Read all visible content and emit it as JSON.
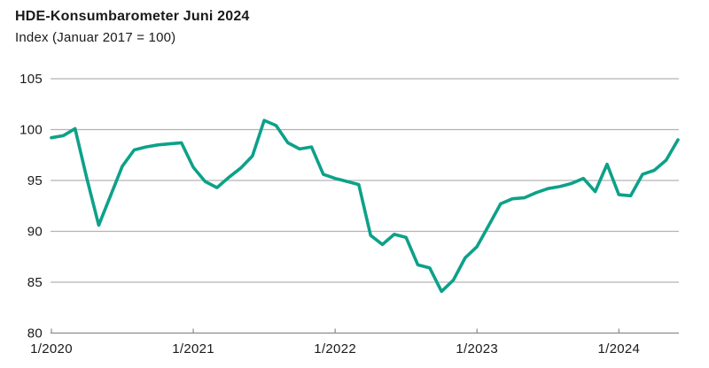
{
  "header": {
    "title": "HDE-Konsumbarometer Juni 2024",
    "subtitle": "Index (Januar 2017 = 100)"
  },
  "chart_data": {
    "type": "line",
    "title": "HDE-Konsumbarometer Juni 2024",
    "subtitle": "Index (Januar 2017 = 100)",
    "ylabel": "",
    "xlabel": "",
    "ylim": [
      80,
      105
    ],
    "y_ticks": [
      105,
      100,
      95,
      90,
      85,
      80
    ],
    "x_ticks": [
      {
        "label": "1/2020",
        "month_index": 0
      },
      {
        "label": "1/2021",
        "month_index": 12
      },
      {
        "label": "1/2022",
        "month_index": 24
      },
      {
        "label": "1/2023",
        "month_index": 36
      },
      {
        "label": "1/2024",
        "month_index": 48
      }
    ],
    "x_range": {
      "start": "1/2020",
      "end": "6/2024",
      "interval": "monthly"
    },
    "grid": true,
    "legend": "none",
    "line_color": "#0da189",
    "series": [
      {
        "name": "HDE-Konsumbarometer",
        "values": [
          99.2,
          99.4,
          100.1,
          95.2,
          90.6,
          93.5,
          96.4,
          98.0,
          98.3,
          98.5,
          98.6,
          98.7,
          96.3,
          94.9,
          94.3,
          95.3,
          96.2,
          97.4,
          100.9,
          100.4,
          98.7,
          98.1,
          98.3,
          95.6,
          95.2,
          94.9,
          94.6,
          89.6,
          88.7,
          89.7,
          89.4,
          86.7,
          86.4,
          84.1,
          85.2,
          87.4,
          88.5,
          90.6,
          92.7,
          93.2,
          93.3,
          93.8,
          94.2,
          94.4,
          94.7,
          95.2,
          93.9,
          96.6,
          93.6,
          93.5,
          95.6,
          96.0,
          97.0,
          99.0
        ]
      }
    ]
  },
  "colors": {
    "text": "#1a1a1a",
    "gridline": "#b3b3b3",
    "axis": "#8c8c8c",
    "background": "#ffffff"
  }
}
